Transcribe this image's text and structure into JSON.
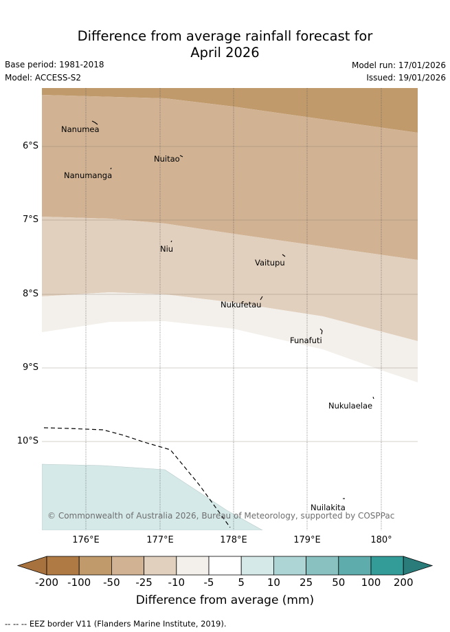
{
  "title": {
    "line1": "Difference from average rainfall forecast for",
    "line2": "April 2026"
  },
  "meta": {
    "base_period": "Base period: 1981-2018",
    "model": "Model: ACCESS-S2",
    "model_run": "Model run: 17/01/2026",
    "issued": "Issued: 19/01/2026"
  },
  "map": {
    "lat_labels": [
      "6°S",
      "7°S",
      "8°S",
      "9°S",
      "10°S"
    ],
    "lon_labels": [
      "176°E",
      "177°E",
      "178°E",
      "179°E",
      "180°"
    ],
    "islands": [
      "Nanumea",
      "Nuitao",
      "Nanumanga",
      "Niu",
      "Vaitupu",
      "Nukufetau",
      "Funafuti",
      "Nukulaelae",
      "Nuilakita"
    ],
    "copyright": "© Commonwealth of Australia 2026, Bureau of Meteorology, supported by COSPPac",
    "regions": [
      {
        "name": "-100 to -50",
        "color": "#c19a6c"
      },
      {
        "name": "-50 to -25",
        "color": "#d1b394"
      },
      {
        "name": "-25 to -10",
        "color": "#e2d0be"
      },
      {
        "name": "-10 to -5",
        "color": "#f3efea"
      },
      {
        "name": "-5 to 5",
        "color": "#ffffff"
      },
      {
        "name": "5 to 10",
        "color": "#d5e9e8"
      }
    ]
  },
  "colorbar": {
    "labels": [
      "-200",
      "-100",
      "-50",
      "-25",
      "-10",
      "-5",
      "5",
      "10",
      "25",
      "50",
      "100",
      "200"
    ],
    "colors": [
      "#a7723e",
      "#b07a45",
      "#c19a6c",
      "#d1b394",
      "#e2d0be",
      "#f3efea",
      "#ffffff",
      "#d5e9e8",
      "#add5d5",
      "#88c1c0",
      "#5eacab",
      "#339b98",
      "#2a7c7a"
    ],
    "title": "Difference from average (mm)"
  },
  "footer": {
    "eez": "--  --  -- EEZ border V11 (Flanders Marine Institute, 2019)."
  }
}
